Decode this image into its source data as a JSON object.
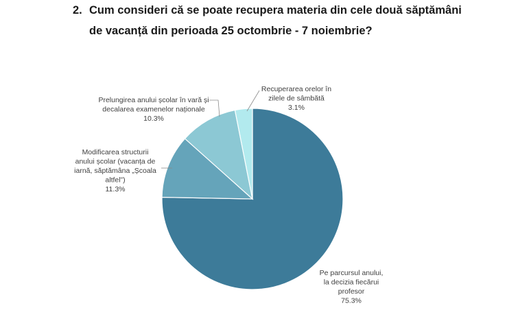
{
  "question": {
    "number": "2.",
    "line1": "Cum consideri că se poate recupera materia din cele două săptămâni",
    "line2": "de vacanță din perioada 25 octombrie - 7 noiembrie?"
  },
  "chart_data": {
    "type": "pie",
    "title": "",
    "slices": [
      {
        "label_lines": [
          "Pe parcursul anului,",
          "la decizia fiecărui",
          "profesor"
        ],
        "value": 75.3,
        "value_label": "75.3%",
        "color": "#3d7b99"
      },
      {
        "label_lines": [
          "Modificarea structurii",
          "anului școlar (vacanța de",
          "iarnă, săptămâna „Școala",
          "altfel”)"
        ],
        "value": 11.3,
        "value_label": "11.3%",
        "color": "#65a4ba"
      },
      {
        "label_lines": [
          "Prelungirea anului școlar în vară și",
          "decalarea examenelor naționale"
        ],
        "value": 10.3,
        "value_label": "10.3%",
        "color": "#8cc8d4"
      },
      {
        "label_lines": [
          "Recuperarea orelor în",
          "zilele de sâmbătă"
        ],
        "value": 3.1,
        "value_label": "3.1%",
        "color": "#b2eaee"
      }
    ],
    "start_angle_deg": 0,
    "direction": "clockwise"
  }
}
